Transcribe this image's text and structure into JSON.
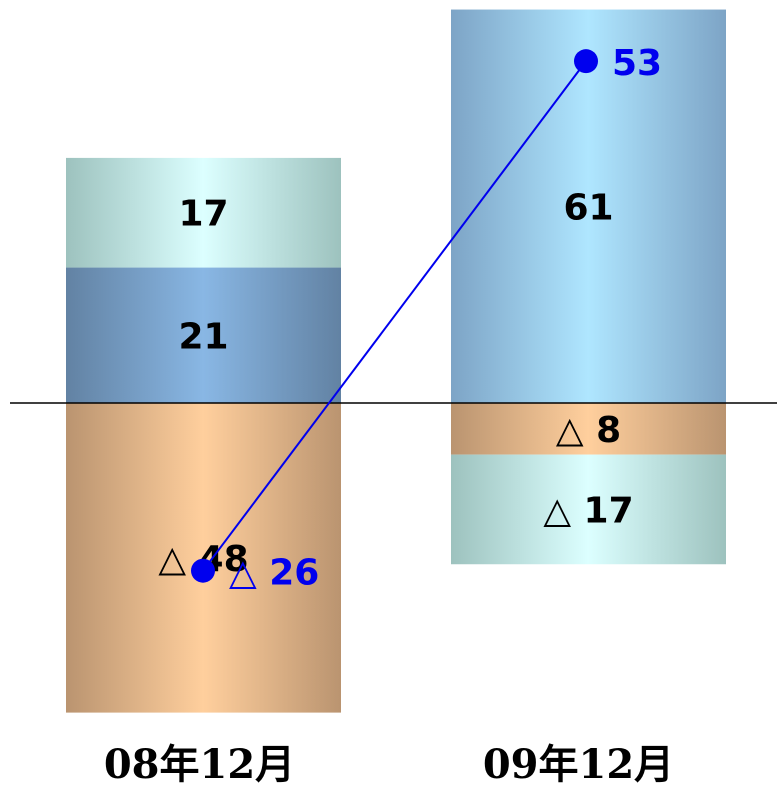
{
  "chart_data": {
    "type": "bar",
    "stacked": true,
    "categories": [
      "08年12月",
      "09年12月"
    ],
    "series": [
      {
        "key": "orange",
        "color": "#e8b98c",
        "values": [
          -48,
          -8
        ],
        "labels": [
          "△ 48",
          "△ 8"
        ]
      },
      {
        "key": "steel-blue",
        "color": "#7aa3cc",
        "values": [
          21,
          0
        ],
        "labels": [
          "21",
          ""
        ]
      },
      {
        "key": "light-blue",
        "color": "#9ccdf7",
        "values": [
          0,
          61
        ],
        "labels": [
          "",
          "61"
        ]
      },
      {
        "key": "cyan",
        "color": "#c4f2ee",
        "values": [
          17,
          -17
        ],
        "labels": [
          "17",
          "△ 17"
        ]
      }
    ],
    "total_line": {
      "color": "#0000ee",
      "values": [
        -26,
        53
      ],
      "labels": [
        "△ 26",
        "53"
      ]
    },
    "ylim": [
      -70,
      91
    ],
    "baseline": 0,
    "grid": false,
    "legend": "none"
  }
}
